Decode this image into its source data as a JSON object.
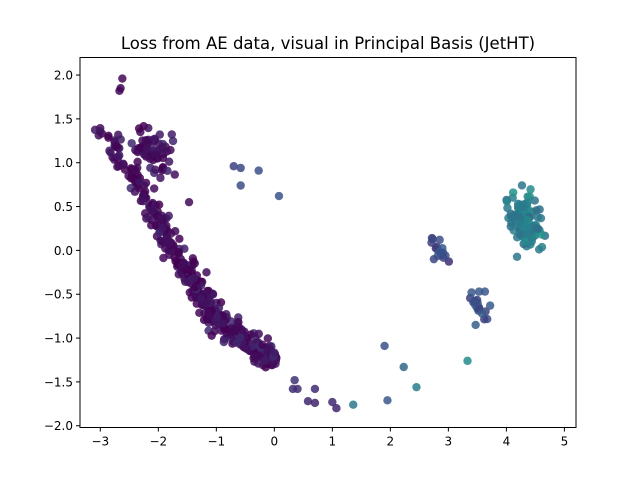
{
  "chart_data": {
    "type": "scatter",
    "title": "Loss from AE data, visual in Principal Basis (JetHT)",
    "xlabel": "",
    "ylabel": "",
    "xlim": [
      -3.35,
      5.2
    ],
    "ylim": [
      -2.02,
      2.2
    ],
    "xticks": [
      -3,
      -2,
      -1,
      0,
      1,
      2,
      3,
      4,
      5
    ],
    "xtick_labels": [
      "−3",
      "−2",
      "−1",
      "0",
      "1",
      "2",
      "3",
      "4",
      "5"
    ],
    "yticks": [
      -2.0,
      -1.5,
      -1.0,
      -0.5,
      0.0,
      0.5,
      1.0,
      1.5,
      2.0
    ],
    "ytick_labels": [
      "−2.0",
      "−1.5",
      "−1.0",
      "−0.5",
      "0.0",
      "0.5",
      "1.0",
      "1.5",
      "2.0"
    ],
    "grid": false,
    "legend": "none",
    "colormap": "viridis",
    "colormap_range": [
      0.0,
      1.0
    ],
    "marker_alpha": 0.85,
    "clusters": [
      {
        "from": [
          -3.0,
          1.4
        ],
        "to": [
          -2.1,
          0.45
        ],
        "n": 70,
        "spread": 0.07,
        "c": 0.02
      },
      {
        "from": [
          -2.1,
          0.45
        ],
        "to": [
          -1.0,
          -0.8
        ],
        "n": 180,
        "spread": 0.07,
        "c": 0.03
      },
      {
        "from": [
          -1.0,
          -0.8
        ],
        "to": [
          0.0,
          -1.25
        ],
        "n": 140,
        "spread": 0.07,
        "c": 0.04
      },
      {
        "from": [
          -2.35,
          1.25
        ],
        "to": [
          -1.85,
          1.0
        ],
        "n": 70,
        "spread": 0.11,
        "c": 0.04
      },
      {
        "from": [
          4.15,
          0.55
        ],
        "to": [
          4.45,
          0.15
        ],
        "n": 110,
        "spread": 0.13,
        "c": 0.42
      },
      {
        "from": [
          2.7,
          0.1
        ],
        "to": [
          2.95,
          -0.1
        ],
        "n": 12,
        "spread": 0.04,
        "c": 0.22
      },
      {
        "from": [
          3.4,
          -0.55
        ],
        "to": [
          3.6,
          -0.75
        ],
        "n": 16,
        "spread": 0.05,
        "c": 0.26
      }
    ],
    "points": [
      [
        -2.62,
        1.96,
        0.02
      ],
      [
        -2.65,
        1.85,
        0.02
      ],
      [
        -2.67,
        1.82,
        0.02
      ],
      [
        -1.47,
        0.55,
        0.03
      ],
      [
        -1.17,
        -0.25,
        0.03
      ],
      [
        -0.7,
        0.96,
        0.2
      ],
      [
        -0.58,
        0.94,
        0.22
      ],
      [
        -0.58,
        0.74,
        0.23
      ],
      [
        -0.27,
        0.91,
        0.24
      ],
      [
        0.08,
        0.62,
        0.26
      ],
      [
        0.32,
        -1.58,
        0.14
      ],
      [
        0.35,
        -1.48,
        0.15
      ],
      [
        0.4,
        -1.58,
        0.14
      ],
      [
        0.58,
        -1.72,
        0.12
      ],
      [
        0.7,
        -1.58,
        0.13
      ],
      [
        0.7,
        -1.74,
        0.11
      ],
      [
        1.0,
        -1.73,
        0.12
      ],
      [
        1.07,
        -1.8,
        0.11
      ],
      [
        1.36,
        -1.76,
        0.4
      ],
      [
        1.9,
        -1.09,
        0.25
      ],
      [
        1.95,
        -1.71,
        0.27
      ],
      [
        2.23,
        -1.33,
        0.33
      ],
      [
        2.45,
        -1.56,
        0.43
      ],
      [
        3.33,
        -1.26,
        0.47
      ],
      [
        3.4,
        -0.48,
        0.27
      ],
      [
        3.53,
        -0.47,
        0.28
      ],
      [
        3.63,
        -0.47,
        0.27
      ],
      [
        3.72,
        -0.63,
        0.29
      ],
      [
        3.47,
        -0.85,
        0.3
      ],
      [
        3.58,
        -0.72,
        0.28
      ],
      [
        2.73,
        0.13,
        0.22
      ],
      [
        2.85,
        0.12,
        0.23
      ],
      [
        2.88,
        -0.03,
        0.24
      ],
      [
        2.95,
        -0.06,
        0.24
      ],
      [
        2.75,
        -0.1,
        0.22
      ]
    ]
  }
}
